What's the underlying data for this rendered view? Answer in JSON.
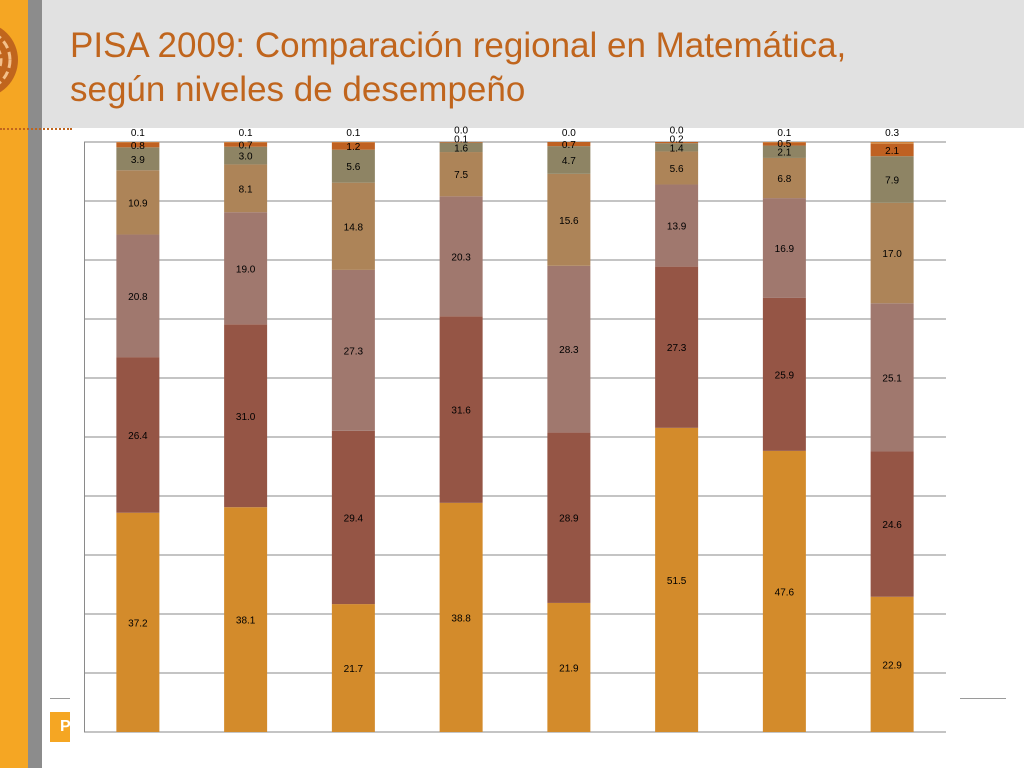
{
  "slide": {
    "title_line1": "PISA 2009: Comparación regional en Matemática,",
    "title_line2": "según niveles de desempeño",
    "footer_badge": "P"
  },
  "colors": {
    "accent_orange": "#f5a623",
    "title_color": "#c0651d",
    "header_band": "#e1e1e1",
    "stripe_gray": "#8c8c8c"
  },
  "chart_data": {
    "type": "bar",
    "stacked": true,
    "percent_stacked": true,
    "categories": [
      "",
      "",
      "",
      "",
      "",
      "",
      "",
      ""
    ],
    "ylim": [
      0,
      100
    ],
    "grid": true,
    "legend": "none",
    "series": [
      {
        "color": "#d38b2b",
        "values": [
          37.2,
          38.1,
          21.7,
          38.8,
          21.9,
          51.5,
          47.6,
          22.9
        ]
      },
      {
        "color": "#955545",
        "values": [
          26.4,
          31.0,
          29.4,
          31.6,
          28.9,
          27.3,
          25.9,
          24.6
        ]
      },
      {
        "color": "#a0786e",
        "values": [
          20.8,
          19.0,
          27.3,
          20.3,
          28.3,
          13.9,
          16.9,
          25.1
        ]
      },
      {
        "color": "#ad8458",
        "values": [
          10.9,
          8.1,
          14.8,
          7.5,
          15.6,
          5.6,
          6.8,
          17.0
        ]
      },
      {
        "color": "#8e8464",
        "values": [
          3.9,
          3.0,
          5.6,
          1.6,
          4.7,
          1.4,
          2.1,
          7.9
        ]
      },
      {
        "color": "#bf6122",
        "values": [
          0.8,
          0.7,
          1.2,
          0.1,
          0.7,
          0.2,
          0.5,
          2.1
        ]
      },
      {
        "color": "#d0823a",
        "values": [
          0.1,
          0.1,
          0.1,
          0.0,
          0.0,
          0.0,
          0.1,
          0.3
        ]
      }
    ]
  }
}
